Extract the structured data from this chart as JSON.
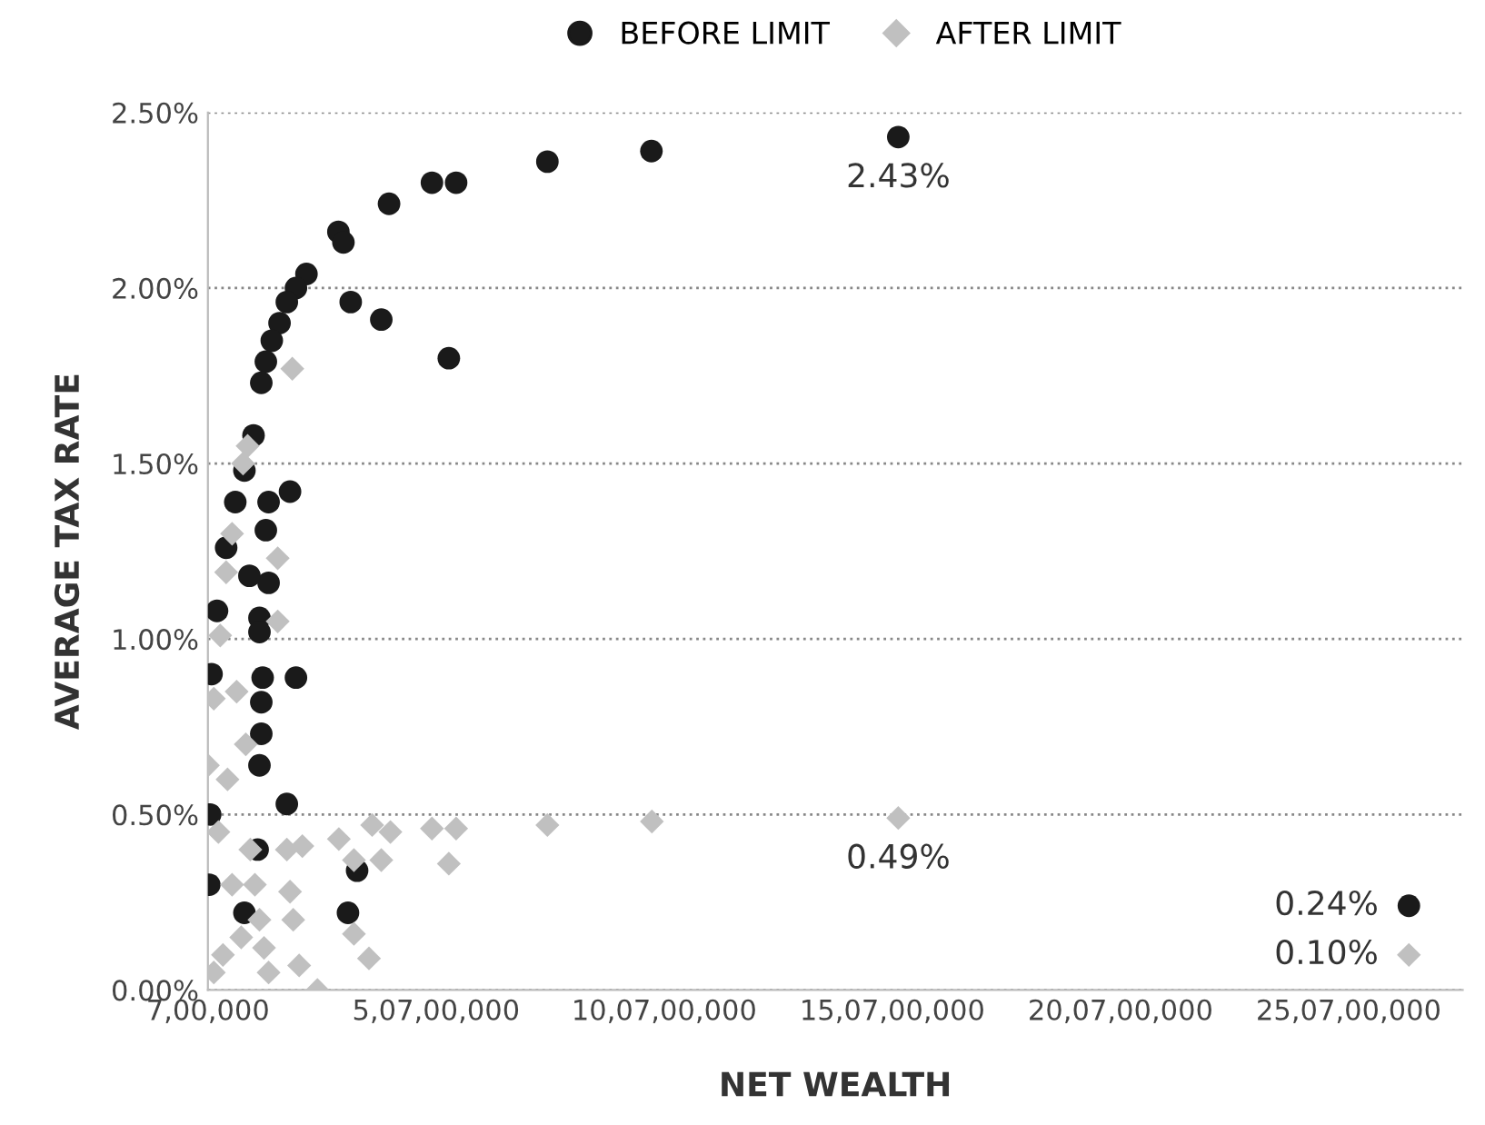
{
  "chart_data": {
    "type": "scatter",
    "xlabel": "NET WEALTH",
    "ylabel": "AVERAGE TAX RATE",
    "legend": "top",
    "grid": "y",
    "xlim": [
      700000,
      275700000
    ],
    "xticks": [
      {
        "value": 700000,
        "label": "7,00,000"
      },
      {
        "value": 50700000,
        "label": "5,07,00,000"
      },
      {
        "value": 100700000,
        "label": "10,07,00,000"
      },
      {
        "value": 150700000,
        "label": "15,07,00,000"
      },
      {
        "value": 200700000,
        "label": "20,07,00,000"
      },
      {
        "value": 250700000,
        "label": "25,07,00,000"
      }
    ],
    "ylim": [
      0,
      2.5
    ],
    "yticks": [
      {
        "value": 0,
        "label": "0.00%"
      },
      {
        "value": 0.5,
        "label": "0.50%"
      },
      {
        "value": 1,
        "label": "1.00%"
      },
      {
        "value": 1.5,
        "label": "1.50%"
      },
      {
        "value": 2,
        "label": "2.00%"
      },
      {
        "value": 2.5,
        "label": "2.50%"
      }
    ],
    "series": [
      {
        "name": "BEFORE LIMIT",
        "color": "#1a1a1a",
        "marker": "circle",
        "x": [
          152000000,
          97900000,
          75100000,
          55100000,
          49800000,
          40400000,
          29300000,
          30400000,
          32000000,
          38700000,
          53500000,
          22300000,
          20000000,
          18000000,
          16400000,
          14700000,
          13400000,
          12400000,
          10700000,
          8700000,
          6700000,
          4700000,
          2700000,
          1500000,
          1000000,
          1200000,
          18700000,
          14000000,
          13400000,
          14000000,
          12000000,
          12000000,
          12700000,
          20000000,
          12400000,
          12400000,
          12000000,
          18000000,
          11600000,
          33400000,
          31400000,
          9800000,
          8700000,
          263900000
        ],
        "values": [
          2.43,
          2.39,
          2.36,
          2.3,
          2.3,
          2.24,
          2.16,
          2.13,
          1.96,
          1.91,
          1.8,
          2.04,
          2.0,
          1.96,
          1.9,
          1.85,
          1.79,
          1.73,
          1.58,
          1.48,
          1.39,
          1.26,
          1.08,
          0.9,
          0.3,
          0.5,
          1.42,
          1.39,
          1.31,
          1.16,
          1.06,
          1.02,
          0.89,
          0.89,
          0.82,
          0.73,
          0.64,
          0.53,
          0.4,
          0.34,
          0.22,
          1.18,
          0.22,
          0.24
        ],
        "value_labels": [
          "2.43%",
          null,
          null,
          null,
          null,
          null,
          null,
          null,
          null,
          null,
          null,
          null,
          null,
          null,
          null,
          null,
          null,
          null,
          null,
          null,
          null,
          null,
          null,
          null,
          null,
          null,
          null,
          null,
          null,
          null,
          null,
          null,
          null,
          null,
          null,
          null,
          null,
          null,
          null,
          null,
          null,
          null,
          null,
          "0.24%"
        ]
      },
      {
        "name": "AFTER LIMIT",
        "color": "#c0c0c0",
        "marker": "diamond",
        "x": [
          152000000,
          98000000,
          75100000,
          55100000,
          49800000,
          53500000,
          40700000,
          38700000,
          29400000,
          32700000,
          32700000,
          36000000,
          24700000,
          20700000,
          19400000,
          18700000,
          21400000,
          18000000,
          36700000,
          19200000,
          16000000,
          16000000,
          9400000,
          8400000,
          6000000,
          4700000,
          3400000,
          2000000,
          700000,
          2000000,
          4000000,
          6000000,
          8000000,
          10000000,
          12000000,
          14000000,
          5000000,
          3000000,
          9000000,
          7000000,
          11000000,
          13000000,
          263900000
        ],
        "values": [
          0.49,
          0.48,
          0.47,
          0.46,
          0.46,
          0.36,
          0.45,
          0.37,
          0.43,
          0.37,
          0.16,
          0.09,
          0.0,
          0.07,
          0.2,
          0.28,
          0.41,
          0.4,
          0.47,
          1.77,
          1.23,
          1.05,
          1.55,
          1.5,
          1.3,
          1.19,
          1.01,
          0.83,
          0.64,
          0.05,
          0.1,
          0.3,
          0.15,
          0.4,
          0.2,
          0.05,
          0.6,
          0.45,
          0.7,
          0.85,
          0.3,
          0.12,
          0.1
        ],
        "value_labels": [
          "0.49%",
          null,
          null,
          null,
          null,
          null,
          null,
          null,
          null,
          null,
          null,
          null,
          null,
          null,
          null,
          null,
          null,
          null,
          null,
          null,
          null,
          null,
          null,
          null,
          null,
          null,
          null,
          null,
          null,
          null,
          null,
          null,
          null,
          null,
          null,
          null,
          null,
          null,
          null,
          null,
          null,
          null,
          "0.10%"
        ]
      }
    ]
  }
}
